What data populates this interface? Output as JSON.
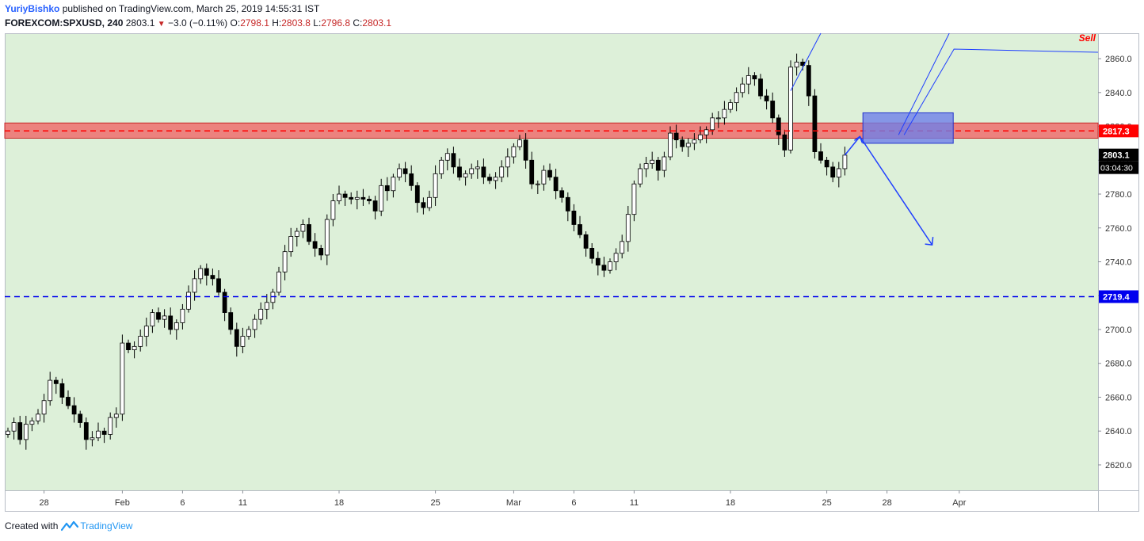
{
  "header": {
    "author": "YuriyBishko",
    "published": "published on TradingView.com, March 25, 2019 14:55:31 IST",
    "symbol": "FOREXCOM:SPXUSD, 240",
    "last": "2803.1",
    "change": "−3.0 (−0.11%)",
    "o_label": "O:",
    "o_val": "2798.1",
    "h_label": "H:",
    "h_val": "2803.8",
    "l_label": "L:",
    "l_val": "2796.8",
    "c_label": "C:",
    "c_val": "2803.1"
  },
  "footer": {
    "created_with": "Created with",
    "brand": "TradingView"
  },
  "colors": {
    "background": "#ddf0d9",
    "candle_up": "#ffffff",
    "candle_down": "#000000",
    "resistance_band": "#f06666",
    "resistance_line": "#ff0000",
    "support_line": "#0000ee",
    "projection_box": "#6f7fe8",
    "arrows": "#1f3fff",
    "sell_text": "#ff0000"
  },
  "chart_data": {
    "type": "candlestick",
    "symbol": "FOREXCOM:SPXUSD",
    "timeframe": "240",
    "ylim": [
      2605,
      2875
    ],
    "y_ticks": [
      2620,
      2640,
      2660,
      2680,
      2700,
      2720,
      2740,
      2760,
      2780,
      2800,
      2820,
      2840,
      2860
    ],
    "y_tick_labels": [
      "2620.0",
      "2640.0",
      "2660.0",
      "2680.0",
      "2700.0",
      "2720.0",
      "2740.0",
      "2760.0",
      "2780.0",
      "2800.0",
      "2820.0",
      "2840.0",
      "2860.0"
    ],
    "x_ticks": [
      "28",
      "Feb",
      "6",
      "11",
      "18",
      "25",
      "Mar",
      "6",
      "11",
      "18",
      "25",
      "28",
      "Apr"
    ],
    "x_tick_index": [
      6,
      19,
      29,
      39,
      55,
      71,
      84,
      94,
      104,
      120,
      136,
      146,
      158
    ],
    "price_labels": [
      {
        "name": "resistance",
        "value": 2817.3,
        "text": "2817.3"
      },
      {
        "name": "last",
        "value": 2803.1,
        "text": "2803.1"
      },
      {
        "name": "support",
        "value": 2719.4,
        "text": "2719.4"
      }
    ],
    "countdown": "03:04:30",
    "annotation": "Sell",
    "resistance_zone": [
      2813,
      2822
    ],
    "projection_box_price": [
      2810,
      2828
    ],
    "projection_box_index": [
      142,
      157
    ],
    "target_price": 2750,
    "candles_close": [
      2640,
      2645,
      2635,
      2644,
      2646,
      2650,
      2658,
      2670,
      2668,
      2660,
      2655,
      2650,
      2645,
      2635,
      2636,
      2640,
      2638,
      2648,
      2650,
      2692,
      2688,
      2690,
      2696,
      2702,
      2710,
      2706,
      2708,
      2700,
      2704,
      2712,
      2722,
      2730,
      2736,
      2732,
      2730,
      2722,
      2710,
      2700,
      2690,
      2696,
      2700,
      2706,
      2712,
      2716,
      2722,
      2734,
      2746,
      2755,
      2758,
      2762,
      2752,
      2748,
      2744,
      2765,
      2776,
      2780,
      2778,
      2777,
      2778,
      2777,
      2776,
      2770,
      2785,
      2782,
      2790,
      2795,
      2792,
      2785,
      2775,
      2772,
      2778,
      2792,
      2800,
      2804,
      2796,
      2790,
      2792,
      2795,
      2796,
      2790,
      2788,
      2790,
      2796,
      2802,
      2808,
      2812,
      2800,
      2786,
      2786,
      2794,
      2790,
      2782,
      2778,
      2770,
      2762,
      2756,
      2748,
      2742,
      2738,
      2735,
      2740,
      2745,
      2752,
      2768,
      2786,
      2795,
      2798,
      2800,
      2794,
      2802,
      2816,
      2812,
      2808,
      2810,
      2812,
      2815,
      2818,
      2825,
      2825,
      2830,
      2834,
      2840,
      2845,
      2850,
      2848,
      2838,
      2835,
      2825,
      2815,
      2806,
      2855,
      2858,
      2856,
      2838,
      2805,
      2800,
      2796,
      2790,
      2795,
      2803
    ]
  }
}
